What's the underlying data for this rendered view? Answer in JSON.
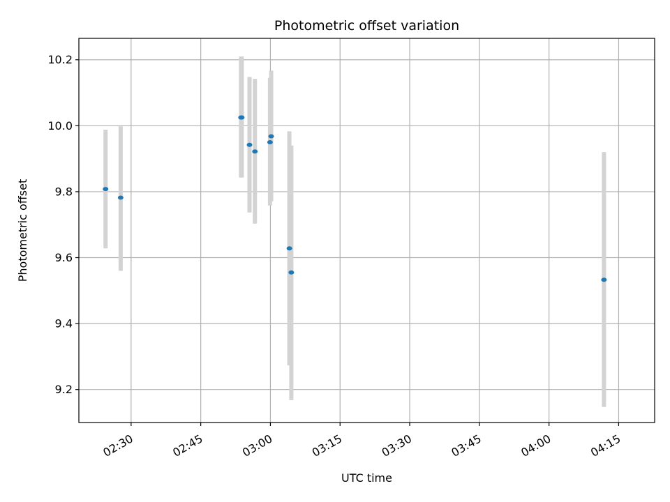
{
  "chart_data": {
    "type": "scatter",
    "title": "Photometric offset variation",
    "xlabel": "UTC time",
    "ylabel": "Photometric offset",
    "xlim": [
      "02:18:45",
      "04:22:45"
    ],
    "ylim": [
      9.1,
      10.265
    ],
    "x_ticks": [
      "02:30",
      "02:45",
      "03:00",
      "03:15",
      "03:30",
      "03:45",
      "04:00",
      "04:15"
    ],
    "y_ticks": [
      9.2,
      9.4,
      9.6,
      9.8,
      10.0,
      10.2
    ],
    "grid": true,
    "colors": {
      "point": "#1f77b4",
      "errorbar": "#d3d3d3",
      "grid": "#b0b0b0",
      "axes": "#000000"
    },
    "points": [
      {
        "x": "02:24:30",
        "y": 9.808,
        "err_low": 9.628,
        "err_high": 9.988
      },
      {
        "x": "02:27:45",
        "y": 9.782,
        "err_low": 9.56,
        "err_high": 9.998
      },
      {
        "x": "02:53:40",
        "y": 10.025,
        "err_low": 9.843,
        "err_high": 10.21
      },
      {
        "x": "02:53:50",
        "y": 10.025,
        "err_low": 9.843,
        "err_high": 10.21
      },
      {
        "x": "02:55:30",
        "y": 9.942,
        "err_low": 9.737,
        "err_high": 10.148
      },
      {
        "x": "02:56:40",
        "y": 9.922,
        "err_low": 9.703,
        "err_high": 10.142
      },
      {
        "x": "02:59:55",
        "y": 9.95,
        "err_low": 9.758,
        "err_high": 10.145
      },
      {
        "x": "03:00:10",
        "y": 9.968,
        "err_low": 9.771,
        "err_high": 10.167
      },
      {
        "x": "03:04:05",
        "y": 9.628,
        "err_low": 9.273,
        "err_high": 9.983
      },
      {
        "x": "03:04:30",
        "y": 9.555,
        "err_low": 9.168,
        "err_high": 9.94
      },
      {
        "x": "04:11:50",
        "y": 9.533,
        "err_low": 9.147,
        "err_high": 9.92
      }
    ]
  }
}
